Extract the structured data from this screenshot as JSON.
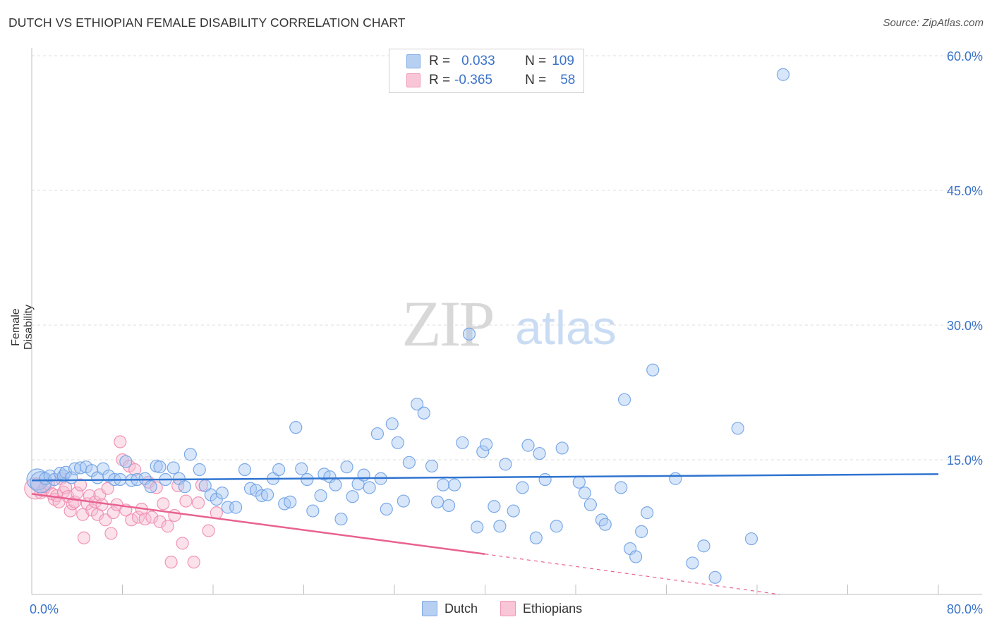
{
  "title": "DUTCH VS ETHIOPIAN FEMALE DISABILITY CORRELATION CHART",
  "source": "Source: ZipAtlas.com",
  "colors": {
    "dutch": "#6ea1e6",
    "dutch_fill": "#a8c8f2",
    "dutch_line": "#2f74d0",
    "ethiopians": "#ef8bb0",
    "ethiopians_fill": "#f6bcd1",
    "ethiopians_line": "#e8628f",
    "axis_text": "#3b73c8"
  },
  "legend": {
    "dutch": {
      "r_label": "R =",
      "r_value": "0.033",
      "n_label": "N =",
      "n_value": "109"
    },
    "ethiopians": {
      "r_label": "R =",
      "r_value": "-0.365",
      "n_label": "N =",
      "n_value": "58"
    }
  },
  "chart_data": {
    "type": "scatter",
    "title": "DUTCH VS ETHIOPIAN FEMALE DISABILITY CORRELATION CHART",
    "xlabel": "",
    "ylabel": "Female Disability",
    "xlim": [
      0,
      80
    ],
    "ylim": [
      0,
      60
    ],
    "x_tick_labels": [
      "0.0%",
      "80.0%"
    ],
    "y_ticks": [
      15,
      30,
      45,
      60
    ],
    "y_tick_labels": [
      "15.0%",
      "30.0%",
      "45.0%",
      "60.0%"
    ],
    "watermark": {
      "zip": "ZIP",
      "atlas": "atlas"
    },
    "series": [
      {
        "name": "Dutch",
        "trend": {
          "x": [
            0,
            80
          ],
          "y": [
            12.7,
            13.4
          ]
        },
        "points": [
          [
            0.5,
            12.8,
            "big"
          ],
          [
            0.8,
            12.5,
            "big"
          ],
          [
            1.2,
            12.9
          ],
          [
            1.6,
            13.2
          ],
          [
            2.0,
            12.8
          ],
          [
            2.5,
            13.5
          ],
          [
            2.8,
            13.2
          ],
          [
            3.0,
            13.6
          ],
          [
            3.5,
            13.0
          ],
          [
            3.8,
            14.0
          ],
          [
            4.3,
            14.1
          ],
          [
            4.8,
            14.2
          ],
          [
            5.3,
            13.8
          ],
          [
            5.8,
            13.0
          ],
          [
            6.3,
            14.0
          ],
          [
            6.8,
            13.2
          ],
          [
            7.3,
            12.8
          ],
          [
            7.8,
            12.8
          ],
          [
            8.3,
            14.8
          ],
          [
            8.8,
            12.7
          ],
          [
            9.3,
            12.8
          ],
          [
            10.0,
            12.9
          ],
          [
            10.5,
            12.0
          ],
          [
            11.0,
            14.3
          ],
          [
            11.3,
            14.2
          ],
          [
            11.8,
            12.8
          ],
          [
            12.5,
            14.1
          ],
          [
            13.0,
            12.9
          ],
          [
            13.5,
            12.0
          ],
          [
            14.0,
            15.6
          ],
          [
            14.8,
            13.9
          ],
          [
            15.3,
            12.1
          ],
          [
            15.8,
            11.1
          ],
          [
            16.3,
            10.6
          ],
          [
            16.8,
            11.3
          ],
          [
            17.3,
            9.7
          ],
          [
            18.0,
            9.7
          ],
          [
            18.8,
            13.9
          ],
          [
            19.3,
            11.8
          ],
          [
            19.8,
            11.6
          ],
          [
            20.3,
            11.0
          ],
          [
            20.8,
            11.1
          ],
          [
            21.3,
            12.9
          ],
          [
            21.8,
            13.9
          ],
          [
            22.3,
            10.1
          ],
          [
            22.8,
            10.3
          ],
          [
            23.3,
            18.6
          ],
          [
            23.8,
            14.0
          ],
          [
            24.3,
            12.8
          ],
          [
            24.8,
            9.3
          ],
          [
            25.5,
            11.0
          ],
          [
            25.8,
            13.4
          ],
          [
            26.3,
            13.1
          ],
          [
            26.8,
            12.2
          ],
          [
            27.3,
            8.4
          ],
          [
            27.8,
            14.2
          ],
          [
            28.3,
            10.9
          ],
          [
            28.8,
            12.3
          ],
          [
            29.3,
            13.3
          ],
          [
            29.8,
            11.9
          ],
          [
            30.5,
            17.9
          ],
          [
            30.8,
            12.9
          ],
          [
            31.3,
            9.5
          ],
          [
            31.8,
            19.0
          ],
          [
            32.3,
            16.9
          ],
          [
            32.8,
            10.4
          ],
          [
            33.3,
            14.7
          ],
          [
            34.0,
            21.2
          ],
          [
            34.6,
            20.2
          ],
          [
            35.3,
            14.3
          ],
          [
            35.8,
            10.3
          ],
          [
            36.3,
            12.2
          ],
          [
            36.8,
            9.9
          ],
          [
            37.3,
            12.2
          ],
          [
            38.0,
            16.9
          ],
          [
            38.6,
            29.0
          ],
          [
            39.3,
            7.5
          ],
          [
            39.8,
            15.9
          ],
          [
            40.1,
            16.7
          ],
          [
            40.8,
            9.8
          ],
          [
            41.3,
            7.6
          ],
          [
            41.8,
            14.5
          ],
          [
            42.5,
            9.3
          ],
          [
            43.3,
            11.9
          ],
          [
            43.8,
            16.6
          ],
          [
            44.5,
            6.3
          ],
          [
            44.8,
            15.7
          ],
          [
            45.3,
            12.8
          ],
          [
            46.3,
            7.6
          ],
          [
            46.8,
            16.3
          ],
          [
            48.3,
            12.5
          ],
          [
            48.8,
            11.3
          ],
          [
            49.3,
            10.0
          ],
          [
            50.3,
            8.3
          ],
          [
            50.6,
            7.8
          ],
          [
            52.0,
            11.9
          ],
          [
            52.3,
            21.7
          ],
          [
            52.8,
            5.1
          ],
          [
            53.3,
            4.2
          ],
          [
            53.8,
            7.0
          ],
          [
            54.3,
            9.1
          ],
          [
            54.8,
            25.0
          ],
          [
            56.8,
            12.9
          ],
          [
            58.3,
            3.5
          ],
          [
            59.3,
            5.4
          ],
          [
            60.3,
            1.9
          ],
          [
            62.3,
            18.5
          ],
          [
            63.5,
            6.2
          ],
          [
            66.3,
            57.9
          ]
        ]
      },
      {
        "name": "Ethiopians",
        "trend": {
          "x": [
            0,
            40
          ],
          "y": [
            11.2,
            4.5
          ]
        },
        "trend_dashed": {
          "x": [
            40,
            66
          ],
          "y": [
            4.5,
            0.0
          ]
        },
        "points": [
          [
            0.3,
            11.8,
            "big"
          ],
          [
            0.5,
            12.3
          ],
          [
            0.8,
            11.3
          ],
          [
            1.0,
            11.6
          ],
          [
            1.2,
            12.0
          ],
          [
            1.5,
            12.3
          ],
          [
            1.8,
            11.2
          ],
          [
            2.0,
            10.6
          ],
          [
            2.2,
            11.0
          ],
          [
            2.4,
            10.3
          ],
          [
            2.6,
            12.9
          ],
          [
            2.8,
            11.4
          ],
          [
            3.0,
            11.9
          ],
          [
            3.2,
            10.9
          ],
          [
            3.4,
            9.3
          ],
          [
            3.6,
            10.1
          ],
          [
            3.8,
            10.3
          ],
          [
            4.0,
            11.3
          ],
          [
            4.3,
            12.2
          ],
          [
            4.5,
            8.9
          ],
          [
            4.6,
            6.3
          ],
          [
            4.9,
            10.1
          ],
          [
            5.1,
            11.0
          ],
          [
            5.3,
            9.4
          ],
          [
            5.6,
            10.3
          ],
          [
            5.8,
            8.9
          ],
          [
            6.0,
            11.1
          ],
          [
            6.2,
            10.0
          ],
          [
            6.5,
            8.3
          ],
          [
            6.7,
            11.8
          ],
          [
            7.0,
            6.8
          ],
          [
            7.2,
            9.1
          ],
          [
            7.5,
            10.0
          ],
          [
            7.8,
            17.0
          ],
          [
            8.0,
            15.0
          ],
          [
            8.3,
            9.4
          ],
          [
            8.6,
            14.3
          ],
          [
            8.8,
            8.3
          ],
          [
            9.1,
            13.9
          ],
          [
            9.4,
            8.6
          ],
          [
            9.7,
            9.5
          ],
          [
            10.0,
            8.4
          ],
          [
            10.3,
            12.5
          ],
          [
            10.6,
            8.6
          ],
          [
            11.0,
            11.9
          ],
          [
            11.3,
            8.1
          ],
          [
            11.6,
            10.1
          ],
          [
            12.0,
            7.6
          ],
          [
            12.3,
            3.6
          ],
          [
            12.6,
            8.8
          ],
          [
            12.9,
            12.1
          ],
          [
            13.3,
            5.7
          ],
          [
            13.6,
            10.4
          ],
          [
            14.3,
            3.6
          ],
          [
            14.7,
            10.2
          ],
          [
            15.0,
            12.2
          ],
          [
            15.6,
            7.1
          ],
          [
            16.3,
            9.1
          ]
        ]
      }
    ]
  }
}
